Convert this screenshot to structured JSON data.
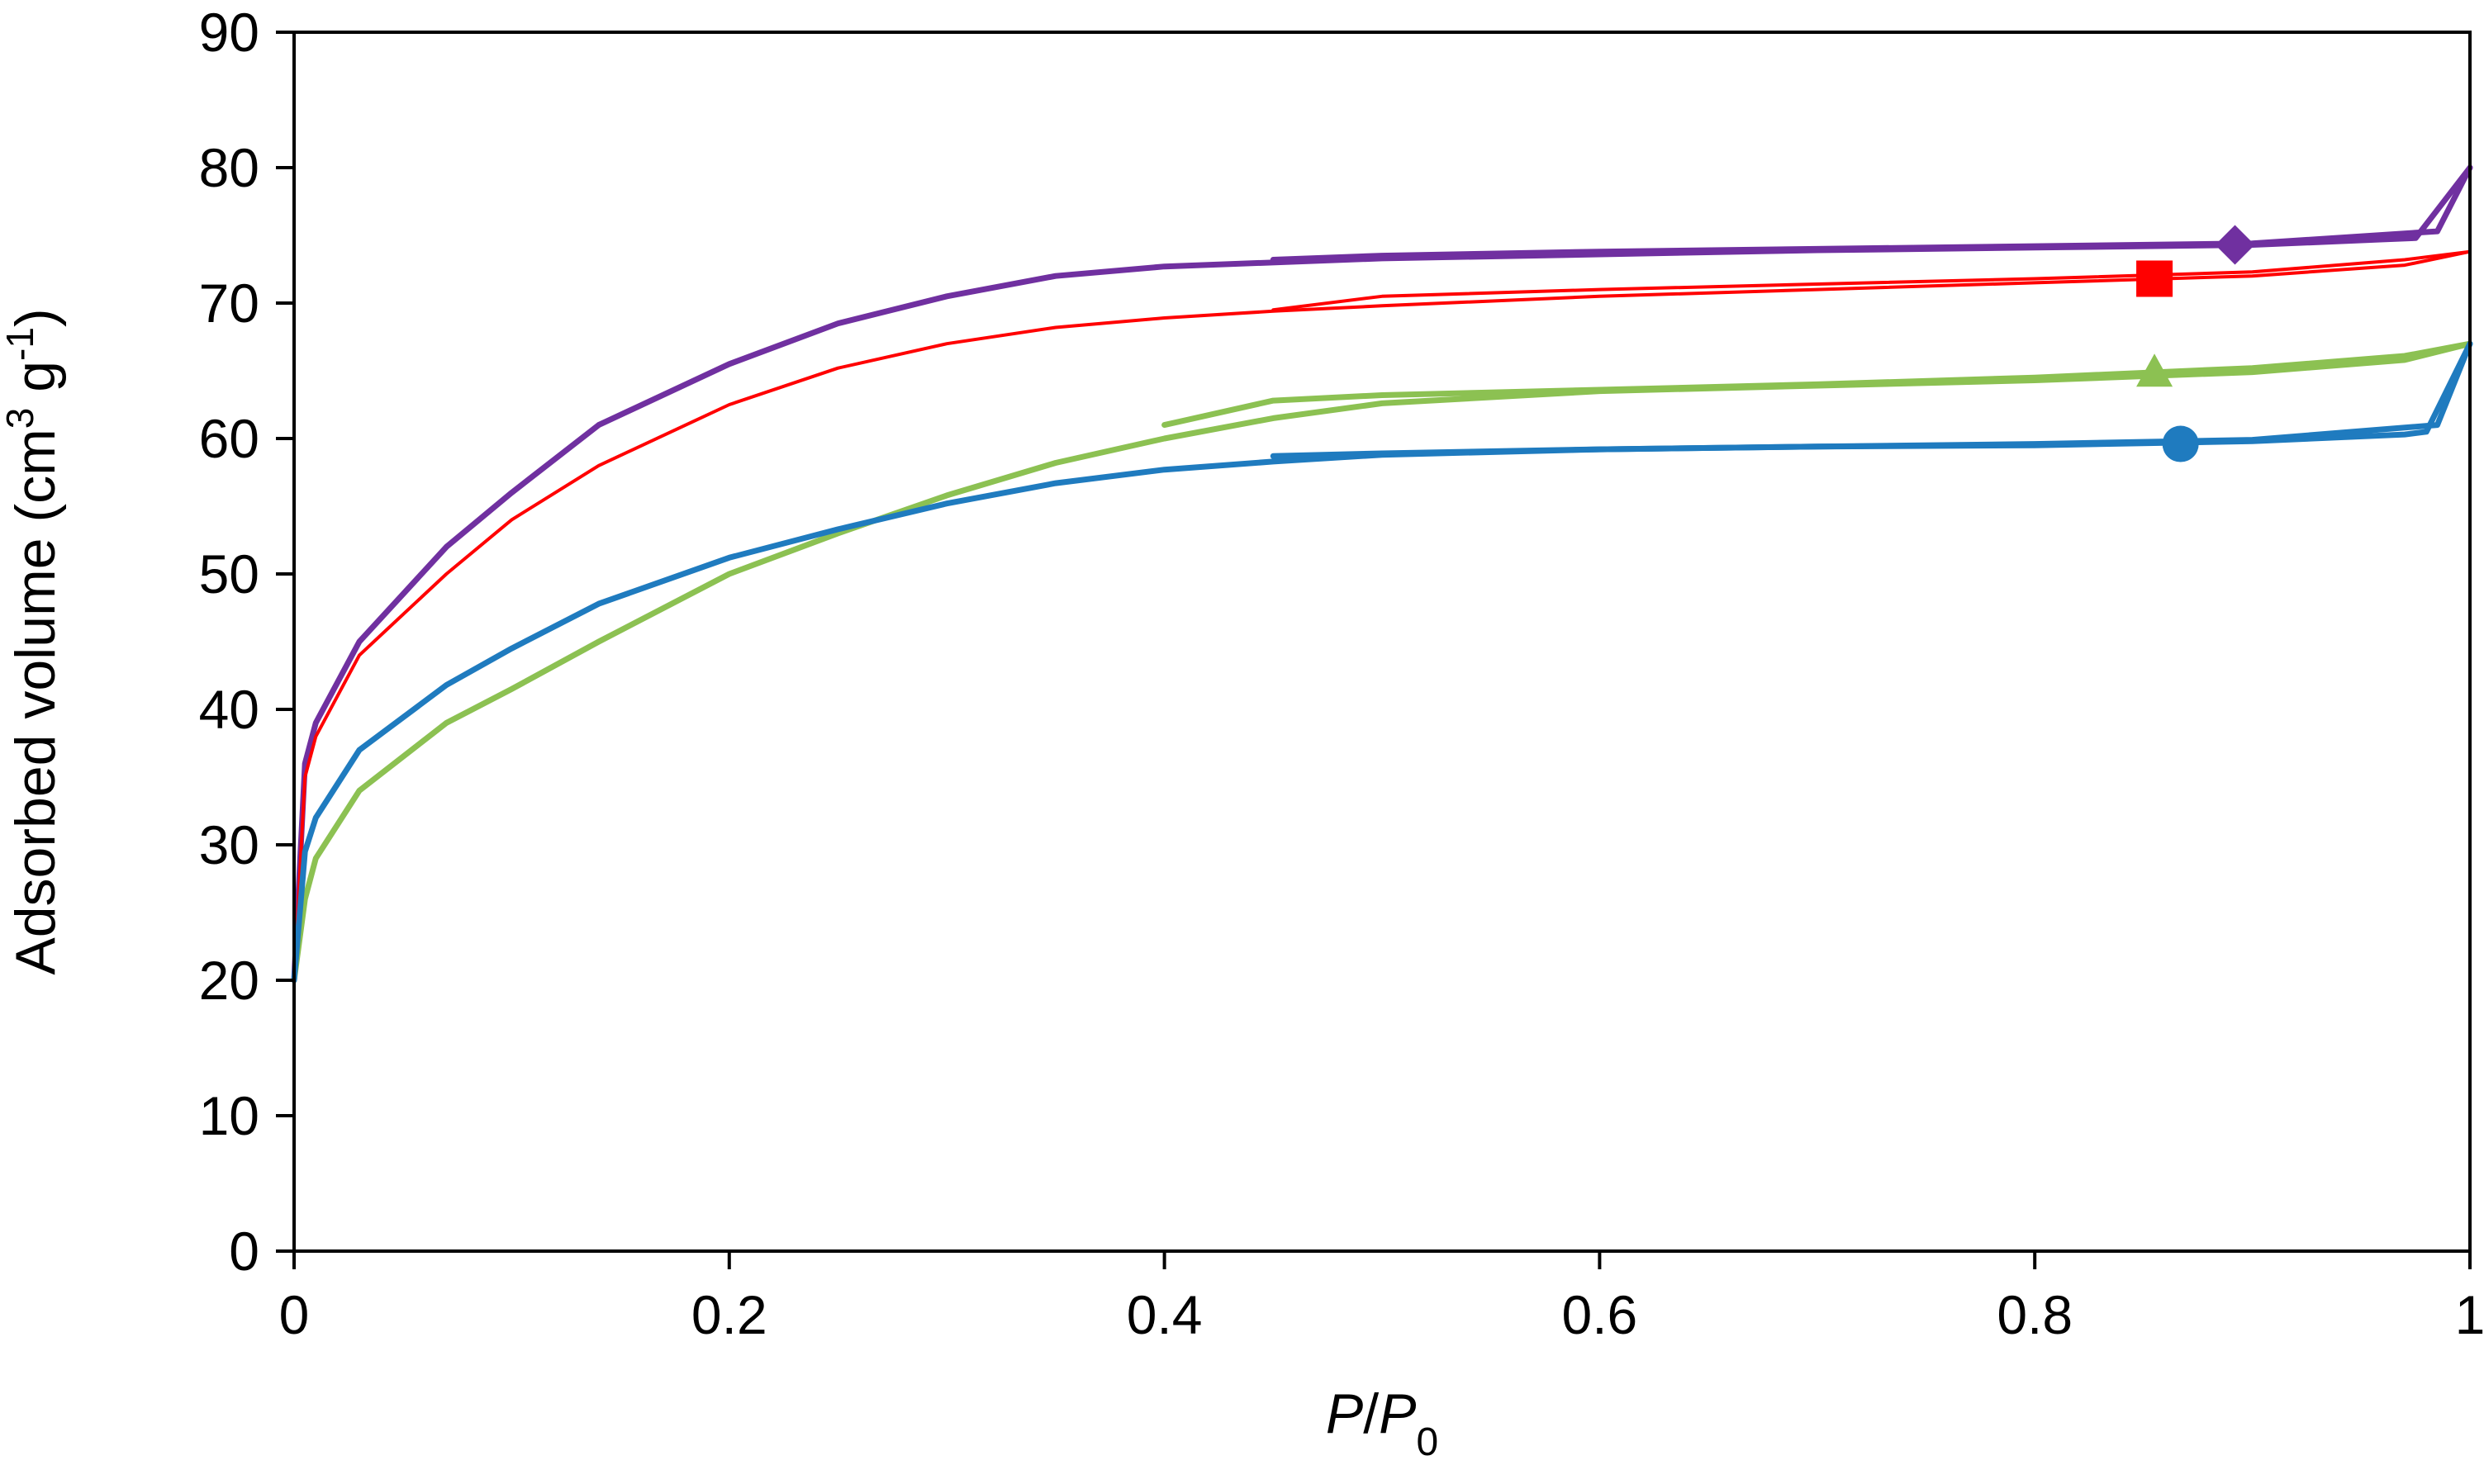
{
  "chart_data": {
    "type": "line",
    "title": "",
    "xlabel": {
      "italic_base": "P",
      "slash": "/",
      "italic_ref": "P",
      "subscript": "0"
    },
    "ylabel": {
      "text": "Adsorbed volume (cm",
      "sup1": "3",
      "mid": " g",
      "sup2": "-1",
      "end": ")"
    },
    "xlim": [
      0,
      1
    ],
    "ylim": [
      0,
      90
    ],
    "xticks": [
      0,
      0.2,
      0.4,
      0.6,
      0.8,
      1
    ],
    "xtick_labels": [
      "0",
      "0.2",
      "0.4",
      "0.6",
      "0.8",
      "1"
    ],
    "yticks": [
      0,
      10,
      20,
      30,
      40,
      50,
      60,
      70,
      80,
      90
    ],
    "ytick_labels": [
      "0",
      "10",
      "20",
      "30",
      "40",
      "50",
      "60",
      "70",
      "80",
      "90"
    ],
    "grid": false,
    "series": [
      {
        "name": "diamond-series",
        "color": "#7030a0",
        "marker": "diamond",
        "marker_at": [
          0.892,
          74.3
        ],
        "width": "thick",
        "adsorption": [
          [
            0,
            20
          ],
          [
            0.005,
            36
          ],
          [
            0.01,
            39
          ],
          [
            0.03,
            45
          ],
          [
            0.07,
            52
          ],
          [
            0.1,
            56
          ],
          [
            0.14,
            61
          ],
          [
            0.2,
            65.5
          ],
          [
            0.25,
            68.5
          ],
          [
            0.3,
            70.5
          ],
          [
            0.35,
            72
          ],
          [
            0.4,
            72.7
          ],
          [
            0.5,
            73.3
          ],
          [
            0.6,
            73.6
          ],
          [
            0.7,
            73.9
          ],
          [
            0.8,
            74.1
          ],
          [
            0.9,
            74.3
          ],
          [
            0.96,
            74.7
          ],
          [
            0.975,
            74.8
          ],
          [
            1.0,
            80
          ]
        ],
        "desorption": [
          [
            1.0,
            80
          ],
          [
            0.985,
            75.3
          ],
          [
            0.9,
            74.4
          ],
          [
            0.8,
            74.2
          ],
          [
            0.7,
            74.0
          ],
          [
            0.6,
            73.8
          ],
          [
            0.5,
            73.5
          ],
          [
            0.45,
            73.2
          ]
        ]
      },
      {
        "name": "square-series",
        "color": "#ff0000",
        "marker": "square",
        "marker_at": [
          0.855,
          71.8
        ],
        "width": "thin",
        "adsorption": [
          [
            0,
            20
          ],
          [
            0.005,
            35
          ],
          [
            0.01,
            38
          ],
          [
            0.03,
            44
          ],
          [
            0.07,
            50
          ],
          [
            0.1,
            54
          ],
          [
            0.14,
            58
          ],
          [
            0.2,
            62.5
          ],
          [
            0.25,
            65.2
          ],
          [
            0.3,
            67
          ],
          [
            0.35,
            68.2
          ],
          [
            0.4,
            68.9
          ],
          [
            0.45,
            69.4
          ],
          [
            0.5,
            69.8
          ],
          [
            0.6,
            70.5
          ],
          [
            0.7,
            71
          ],
          [
            0.8,
            71.5
          ],
          [
            0.9,
            72
          ],
          [
            0.97,
            72.8
          ],
          [
            1.0,
            73.8
          ]
        ],
        "desorption": [
          [
            1.0,
            73.8
          ],
          [
            0.97,
            73.2
          ],
          [
            0.9,
            72.3
          ],
          [
            0.8,
            71.8
          ],
          [
            0.7,
            71.4
          ],
          [
            0.6,
            71.0
          ],
          [
            0.5,
            70.5
          ],
          [
            0.45,
            69.5
          ]
        ]
      },
      {
        "name": "triangle-series",
        "color": "#8cc152",
        "marker": "triangle",
        "marker_at": [
          0.855,
          64.8
        ],
        "width": "thick",
        "adsorption": [
          [
            0,
            20
          ],
          [
            0.005,
            26
          ],
          [
            0.01,
            29
          ],
          [
            0.03,
            34
          ],
          [
            0.07,
            39
          ],
          [
            0.1,
            41.5
          ],
          [
            0.14,
            45
          ],
          [
            0.2,
            50
          ],
          [
            0.25,
            53
          ],
          [
            0.3,
            55.8
          ],
          [
            0.35,
            58.2
          ],
          [
            0.4,
            60
          ],
          [
            0.45,
            61.5
          ],
          [
            0.5,
            62.6
          ],
          [
            0.6,
            63.5
          ],
          [
            0.7,
            63.9
          ],
          [
            0.8,
            64.3
          ],
          [
            0.9,
            64.9
          ],
          [
            0.97,
            65.8
          ],
          [
            1.0,
            67
          ]
        ],
        "desorption": [
          [
            1.0,
            67
          ],
          [
            0.97,
            66.1
          ],
          [
            0.9,
            65.2
          ],
          [
            0.8,
            64.5
          ],
          [
            0.7,
            64.0
          ],
          [
            0.6,
            63.6
          ],
          [
            0.5,
            63.2
          ],
          [
            0.45,
            62.8
          ],
          [
            0.4,
            61
          ]
        ]
      },
      {
        "name": "circle-series",
        "color": "#1f7bbf",
        "marker": "circle",
        "marker_at": [
          0.867,
          59.6
        ],
        "width": "thick",
        "adsorption": [
          [
            0,
            20
          ],
          [
            0.005,
            29.5
          ],
          [
            0.01,
            32
          ],
          [
            0.03,
            37
          ],
          [
            0.07,
            41.8
          ],
          [
            0.1,
            44.5
          ],
          [
            0.14,
            47.8
          ],
          [
            0.2,
            51.2
          ],
          [
            0.25,
            53.3
          ],
          [
            0.3,
            55.2
          ],
          [
            0.35,
            56.7
          ],
          [
            0.4,
            57.7
          ],
          [
            0.45,
            58.3
          ],
          [
            0.5,
            58.8
          ],
          [
            0.6,
            59.2
          ],
          [
            0.7,
            59.4
          ],
          [
            0.8,
            59.5
          ],
          [
            0.9,
            59.8
          ],
          [
            0.97,
            60.3
          ],
          [
            0.98,
            60.5
          ],
          [
            1.0,
            67
          ]
        ],
        "desorption": [
          [
            1.0,
            67
          ],
          [
            0.985,
            61
          ],
          [
            0.9,
            59.9
          ],
          [
            0.8,
            59.6
          ],
          [
            0.7,
            59.4
          ],
          [
            0.6,
            59.2
          ],
          [
            0.5,
            58.9
          ],
          [
            0.45,
            58.7
          ]
        ]
      }
    ]
  }
}
